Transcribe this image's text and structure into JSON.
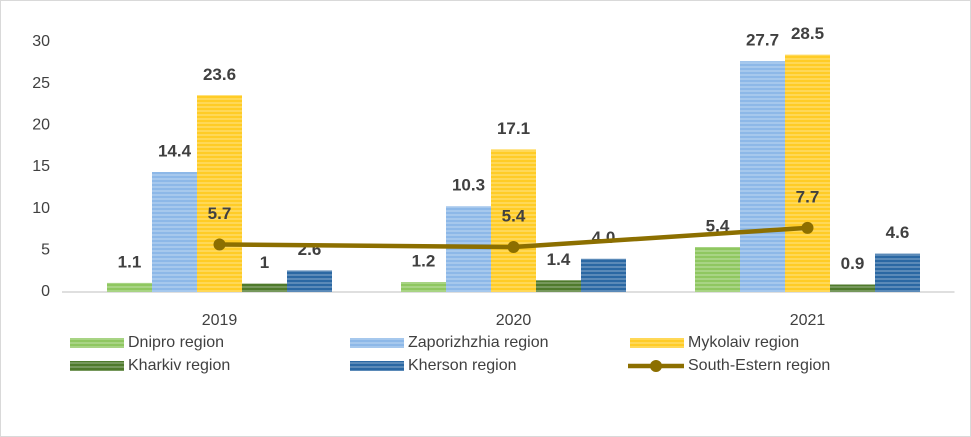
{
  "chart_data": {
    "type": "bar",
    "categories": [
      "2019",
      "2020",
      "2021"
    ],
    "series": [
      {
        "name": "Dnipro region",
        "color": "#8fc760",
        "values": [
          1.1,
          1.2,
          5.4
        ],
        "value_labels": [
          "1.1",
          "1.2",
          "5.4"
        ]
      },
      {
        "name": "Zaporizhzhia region",
        "color": "#8db8e8",
        "values": [
          14.4,
          10.3,
          27.7
        ],
        "value_labels": [
          "14.4",
          "10.3",
          "27.7"
        ]
      },
      {
        "name": "Mykolaiv region",
        "color": "#ffcc26",
        "values": [
          23.6,
          17.1,
          28.5
        ],
        "value_labels": [
          "23.6",
          "17.1",
          "28.5"
        ]
      },
      {
        "name": "Kharkiv region",
        "color": "#4f7a2c",
        "values": [
          1,
          1.4,
          0.9
        ],
        "value_labels": [
          "1",
          "1.4",
          "0.9"
        ]
      },
      {
        "name": "Kherson region",
        "color": "#2b68a3",
        "values": [
          2.6,
          4.0,
          4.6
        ],
        "value_labels": [
          "2.6",
          "4.0",
          "4.6"
        ]
      },
      {
        "name": "South-Estern region",
        "color": "#8c6f00",
        "type": "line",
        "values": [
          5.7,
          5.4,
          7.7
        ],
        "value_labels": [
          "5.7",
          "5.4",
          "7.7"
        ]
      }
    ],
    "ylim": [
      0,
      30
    ],
    "yticks": [
      0,
      5,
      10,
      15,
      20,
      25,
      30
    ],
    "grid": false,
    "legend": "bottom"
  }
}
